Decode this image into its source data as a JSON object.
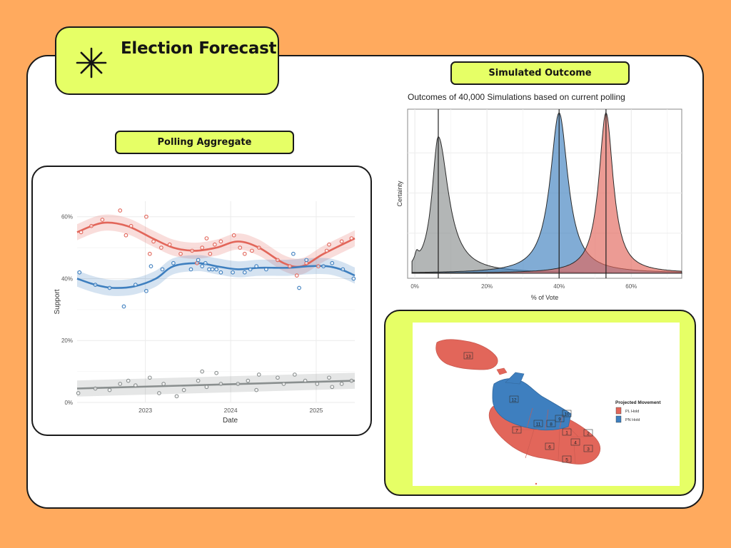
{
  "title": "Election Forecast",
  "sections": {
    "outcome_label": "Simulated Outcome",
    "polling_label": "Polling Aggregate"
  },
  "colors": {
    "pl": "#E2665A",
    "pn": "#3E7FBF",
    "other": "#8A8F8F",
    "accent": "#E6FF66",
    "background": "#FFAA5E"
  },
  "icon": "asterisk-icon",
  "chart_data": [
    {
      "type": "scatter",
      "title": "",
      "xlabel": "Date",
      "ylabel": "Support",
      "x_ticks": [
        "2023",
        "2024",
        "2025"
      ],
      "y_ticks": [
        "0%",
        "20%",
        "40%",
        "60%"
      ],
      "ylim": [
        0,
        65
      ],
      "xlim": [
        "2022-03-15",
        "2025-06-15"
      ],
      "grid": true,
      "legend": "none",
      "series": [
        {
          "color": "#E2665A",
          "points": [
            [
              "2022-04-01",
              55
            ],
            [
              "2022-05-15",
              57
            ],
            [
              "2022-07-01",
              59
            ],
            [
              "2022-09-15",
              62
            ],
            [
              "2022-10-10",
              54
            ],
            [
              "2022-11-01",
              57
            ],
            [
              "2023-01-05",
              60
            ],
            [
              "2023-01-20",
              48
            ],
            [
              "2023-02-05",
              52
            ],
            [
              "2023-03-10",
              50
            ],
            [
              "2023-04-15",
              51
            ],
            [
              "2023-06-01",
              48
            ],
            [
              "2023-07-20",
              49
            ],
            [
              "2023-08-10",
              45
            ],
            [
              "2023-09-01",
              50
            ],
            [
              "2023-09-20",
              53
            ],
            [
              "2023-10-05",
              48
            ],
            [
              "2023-10-25",
              51
            ],
            [
              "2023-11-20",
              52
            ],
            [
              "2024-01-15",
              54
            ],
            [
              "2024-02-10",
              50
            ],
            [
              "2024-03-01",
              48
            ],
            [
              "2024-04-01",
              49
            ],
            [
              "2024-05-01",
              50
            ],
            [
              "2024-07-20",
              46
            ],
            [
              "2024-09-10",
              44
            ],
            [
              "2024-10-10",
              41
            ],
            [
              "2024-11-20",
              45
            ],
            [
              "2025-01-10",
              44
            ],
            [
              "2025-02-15",
              49
            ],
            [
              "2025-02-25",
              51
            ],
            [
              "2025-04-20",
              52
            ],
            [
              "2025-06-01",
              53
            ]
          ],
          "trend": [
            [
              "2022-03-15",
              55
            ],
            [
              "2022-07-01",
              58
            ],
            [
              "2022-10-15",
              57
            ],
            [
              "2023-02-01",
              53
            ],
            [
              "2023-05-01",
              50
            ],
            [
              "2023-08-01",
              49
            ],
            [
              "2023-11-01",
              50
            ],
            [
              "2024-02-01",
              52
            ],
            [
              "2024-05-01",
              50
            ],
            [
              "2024-08-15",
              45
            ],
            [
              "2024-11-01",
              44
            ],
            [
              "2025-02-01",
              48
            ],
            [
              "2025-06-15",
              53
            ]
          ]
        },
        {
          "color": "#3E7FBF",
          "points": [
            [
              "2022-03-25",
              42
            ],
            [
              "2022-06-01",
              38
            ],
            [
              "2022-08-01",
              37
            ],
            [
              "2022-10-01",
              31
            ],
            [
              "2022-11-20",
              38
            ],
            [
              "2023-01-05",
              36
            ],
            [
              "2023-01-25",
              44
            ],
            [
              "2023-03-15",
              43
            ],
            [
              "2023-05-01",
              45
            ],
            [
              "2023-07-15",
              43
            ],
            [
              "2023-08-15",
              46
            ],
            [
              "2023-09-01",
              44
            ],
            [
              "2023-09-15",
              45
            ],
            [
              "2023-10-01",
              43
            ],
            [
              "2023-10-15",
              43
            ],
            [
              "2023-11-01",
              43
            ],
            [
              "2023-11-20",
              42
            ],
            [
              "2024-01-10",
              42
            ],
            [
              "2024-03-01",
              42
            ],
            [
              "2024-03-25",
              43
            ],
            [
              "2024-04-20",
              44
            ],
            [
              "2024-06-01",
              43
            ],
            [
              "2024-09-25",
              48
            ],
            [
              "2024-10-20",
              37
            ],
            [
              "2024-11-20",
              46
            ],
            [
              "2025-02-01",
              44
            ],
            [
              "2025-03-10",
              45
            ],
            [
              "2025-04-25",
              43
            ],
            [
              "2025-06-10",
              40
            ]
          ],
          "trend": [
            [
              "2022-03-15",
              40
            ],
            [
              "2022-06-01",
              38
            ],
            [
              "2022-08-15",
              37
            ],
            [
              "2022-11-15",
              37.5
            ],
            [
              "2023-02-15",
              40
            ],
            [
              "2023-05-01",
              44
            ],
            [
              "2023-08-15",
              45
            ],
            [
              "2023-11-01",
              44
            ],
            [
              "2024-02-01",
              43
            ],
            [
              "2024-05-01",
              43.5
            ],
            [
              "2024-09-01",
              43.5
            ],
            [
              "2024-12-01",
              44
            ],
            [
              "2025-02-15",
              44
            ],
            [
              "2025-04-15",
              43
            ],
            [
              "2025-06-15",
              41
            ]
          ]
        },
        {
          "color": "#8A8F8F",
          "points": [
            [
              "2022-03-20",
              3
            ],
            [
              "2022-06-01",
              4.5
            ],
            [
              "2022-08-01",
              4
            ],
            [
              "2022-09-15",
              6
            ],
            [
              "2022-10-20",
              7
            ],
            [
              "2022-11-20",
              5.5
            ],
            [
              "2023-01-20",
              8
            ],
            [
              "2023-03-01",
              3
            ],
            [
              "2023-03-20",
              6
            ],
            [
              "2023-05-15",
              2
            ],
            [
              "2023-06-15",
              4
            ],
            [
              "2023-08-15",
              7
            ],
            [
              "2023-09-01",
              10
            ],
            [
              "2023-09-20",
              5
            ],
            [
              "2023-11-01",
              9.5
            ],
            [
              "2023-11-20",
              6
            ],
            [
              "2024-02-01",
              6
            ],
            [
              "2024-03-15",
              7
            ],
            [
              "2024-04-20",
              4
            ],
            [
              "2024-05-01",
              9
            ],
            [
              "2024-07-20",
              8
            ],
            [
              "2024-08-15",
              6
            ],
            [
              "2024-10-01",
              9
            ],
            [
              "2024-11-15",
              7
            ],
            [
              "2025-01-05",
              6
            ],
            [
              "2025-02-25",
              8
            ],
            [
              "2025-03-10",
              5
            ],
            [
              "2025-04-20",
              6
            ],
            [
              "2025-06-01",
              7
            ]
          ],
          "trend": [
            [
              "2022-03-15",
              4.5
            ],
            [
              "2025-06-15",
              7
            ]
          ]
        }
      ]
    },
    {
      "type": "area",
      "title": "Outcomes of 40,000 Simulations based on current polling",
      "xlabel": "% of Vote",
      "ylabel": "Certainty",
      "x_ticks": [
        "0%",
        "20%",
        "40%",
        "60%"
      ],
      "xlim": [
        -2,
        74
      ],
      "grid": true,
      "legend": "none",
      "series": [
        {
          "color": "#8A8F8F",
          "peaks": [
            [
              0.5,
              0.055,
              0.6
            ],
            [
              6.5,
              0.85,
              2.1
            ]
          ],
          "tail": 3.4,
          "median": 6.5
        },
        {
          "color": "#3E7FBF",
          "peaks": [
            [
              40,
              1.0,
              3.0
            ]
          ],
          "median": 40
        },
        {
          "color": "#E2665A",
          "peaks": [
            [
              53,
              1.0,
              2.4
            ]
          ],
          "median": 53
        }
      ]
    }
  ],
  "map": {
    "legend_title": "Projected Movement",
    "legend_items": [
      {
        "label": "PL Hold",
        "color": "#E2665A"
      },
      {
        "label": "PN Hold",
        "color": "#3E7FBF"
      }
    ],
    "districts": [
      {
        "n": "13",
        "color": "#E2665A"
      },
      {
        "n": "12",
        "color": "#3E7FBF"
      },
      {
        "n": "10",
        "color": "#3E7FBF"
      },
      {
        "n": "11",
        "color": "#3E7FBF"
      },
      {
        "n": "8",
        "color": "#3E7FBF"
      },
      {
        "n": "9",
        "color": "#3E7FBF"
      },
      {
        "n": "1",
        "color": "#E2665A"
      },
      {
        "n": "2",
        "color": "#E2665A"
      },
      {
        "n": "7",
        "color": "#E2665A"
      },
      {
        "n": "4",
        "color": "#E2665A"
      },
      {
        "n": "6",
        "color": "#E2665A"
      },
      {
        "n": "3",
        "color": "#E2665A"
      },
      {
        "n": "5",
        "color": "#E2665A"
      }
    ]
  }
}
